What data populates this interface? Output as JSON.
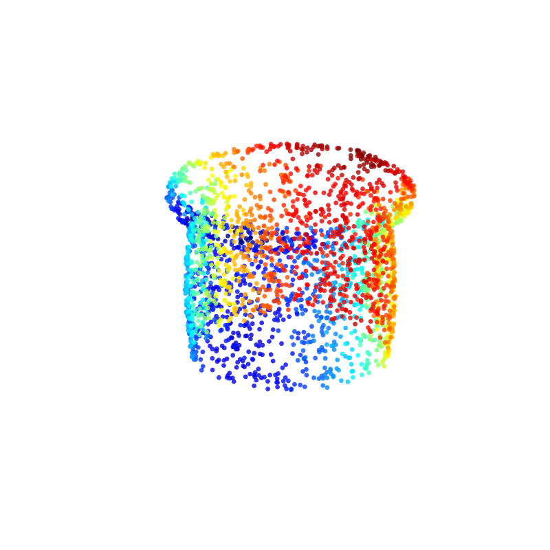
{
  "chart_data": {
    "type": "scatter",
    "subtype": "3d-point-cloud",
    "shape": "pot",
    "title": "",
    "xlabel": "",
    "ylabel": "",
    "zlabel": "",
    "axes_visible": false,
    "grid": false,
    "legend": "none",
    "colormap": "jet",
    "color_by": "x",
    "point_alpha": 0.8,
    "approx_point_count": 2600,
    "geometry": {
      "body_radius": 1.0,
      "rim_radius": 1.25,
      "height": 1.8,
      "rim_band_height": 0.3,
      "inner_visible": true
    },
    "view": {
      "elevation_deg": 22,
      "azimuth_deg": -60
    }
  },
  "colors": {
    "background": "#ffffff",
    "jet_stops": [
      "#00007f",
      "#0000ff",
      "#007fff",
      "#00ffff",
      "#7fff7f",
      "#ffff00",
      "#ff7f00",
      "#ff0000",
      "#7f0000"
    ]
  }
}
